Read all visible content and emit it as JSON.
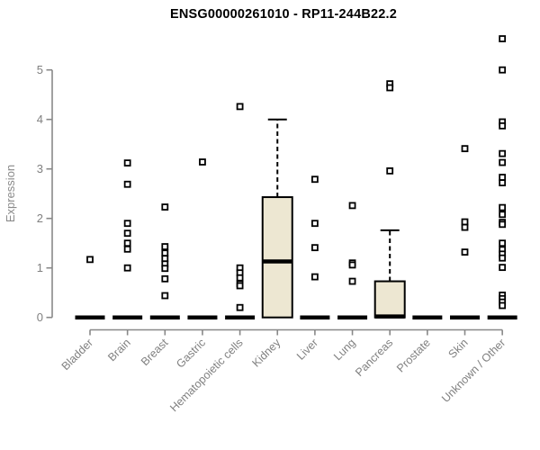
{
  "title": "ENSG00000261010 - RP11-244B22.2",
  "chart_data": {
    "type": "boxplot",
    "title": "ENSG00000261010 - RP11-244B22.2",
    "xlabel": "",
    "ylabel": "Expression",
    "ylim": [
      0,
      5
    ],
    "yticks": [
      0,
      1,
      2,
      3,
      4,
      5
    ],
    "grid": false,
    "legend": false,
    "categories": [
      "Bladder",
      "Brain",
      "Breast",
      "Gastric",
      "Hematopoietic cells",
      "Kidney",
      "Liver",
      "Lung",
      "Pancreas",
      "Prostate",
      "Skin",
      "Unknown / Other"
    ],
    "series": [
      {
        "name": "Bladder",
        "q1": 0,
        "median": 0,
        "q3": 0,
        "whisker_low": 0,
        "whisker_high": 0,
        "outliers": [
          1.17
        ]
      },
      {
        "name": "Brain",
        "q1": 0,
        "median": 0,
        "q3": 0,
        "whisker_low": 0,
        "whisker_high": 0,
        "outliers": [
          3.12,
          2.69,
          1.9,
          1.7,
          1.5,
          1.38,
          1.0
        ]
      },
      {
        "name": "Breast",
        "q1": 0,
        "median": 0,
        "q3": 0,
        "whisker_low": 0,
        "whisker_high": 0,
        "outliers": [
          2.23,
          1.43,
          1.3,
          1.19,
          1.08,
          0.99,
          0.78,
          0.44
        ]
      },
      {
        "name": "Gastric",
        "q1": 0,
        "median": 0,
        "q3": 0,
        "whisker_low": 0,
        "whisker_high": 0,
        "outliers": [
          3.14
        ]
      },
      {
        "name": "Hematopoietic cells",
        "q1": 0,
        "median": 0,
        "q3": 0,
        "whisker_low": 0,
        "whisker_high": 0,
        "outliers": [
          4.26,
          1.0,
          0.9,
          0.8,
          0.68,
          0.64,
          0.2
        ]
      },
      {
        "name": "Kidney",
        "q1": 0,
        "median": 1.13,
        "q3": 2.43,
        "whisker_low": 0,
        "whisker_high": 4.0,
        "outliers": []
      },
      {
        "name": "Liver",
        "q1": 0,
        "median": 0,
        "q3": 0,
        "whisker_low": 0,
        "whisker_high": 0,
        "outliers": [
          2.79,
          1.9,
          1.41,
          0.82
        ]
      },
      {
        "name": "Lung",
        "q1": 0,
        "median": 0,
        "q3": 0,
        "whisker_low": 0,
        "whisker_high": 0,
        "outliers": [
          2.26,
          1.1,
          1.06,
          0.73
        ]
      },
      {
        "name": "Pancreas",
        "q1": 0,
        "median": 0.02,
        "q3": 0.73,
        "whisker_low": 0,
        "whisker_high": 1.76,
        "outliers": [
          4.72,
          4.64,
          2.96
        ]
      },
      {
        "name": "Prostate",
        "q1": 0,
        "median": 0,
        "q3": 0,
        "whisker_low": 0,
        "whisker_high": 0,
        "outliers": []
      },
      {
        "name": "Skin",
        "q1": 0,
        "median": 0,
        "q3": 0,
        "whisker_low": 0,
        "whisker_high": 0,
        "outliers": [
          3.41,
          1.93,
          1.82,
          1.32
        ]
      },
      {
        "name": "Unknown / Other",
        "q1": 0,
        "median": 0,
        "q3": 0,
        "whisker_low": 0,
        "whisker_high": 0,
        "outliers": [
          5.63,
          5.0,
          3.95,
          3.87,
          3.31,
          3.13,
          2.83,
          2.72,
          2.22,
          2.08,
          1.92,
          1.88,
          1.5,
          1.37,
          1.28,
          1.2,
          1.01,
          0.45,
          0.38,
          0.31,
          0.24
        ]
      }
    ],
    "colors": {
      "box_fill": "#EDE7D2",
      "box_stroke": "#000000",
      "median": "#000000",
      "outlier_stroke": "#000000",
      "outlier_fill": "#FFFFFF",
      "axis": "#888888",
      "tick_label": "#808080",
      "title": "#000000",
      "background": "#FFFFFF"
    }
  }
}
